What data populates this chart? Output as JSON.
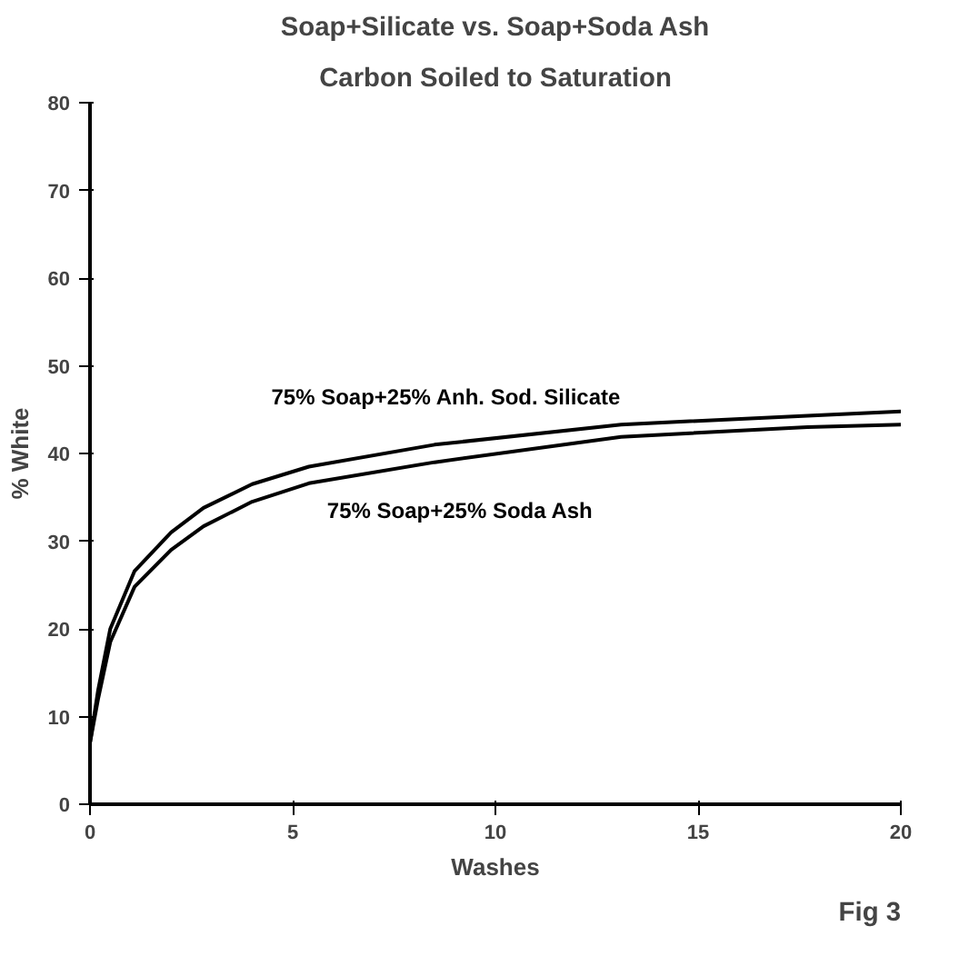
{
  "chart_data": {
    "type": "line",
    "title": "Soap+Silicate vs. Soap+Soda Ash",
    "subtitle": "Carbon Soiled to Saturation",
    "xlabel": "Washes",
    "ylabel": "% White",
    "xlim": [
      0,
      20
    ],
    "xticks": [
      0,
      5,
      10,
      15,
      20
    ],
    "ylim": [
      0,
      80
    ],
    "yticks": [
      0,
      10,
      20,
      30,
      40,
      50,
      60,
      70,
      80
    ],
    "grid": false,
    "legend": false,
    "marker": "none",
    "line_style": "solid",
    "series": [
      {
        "name": "75% Soap+25% Anh. Sod. Silicate",
        "color": "#000000",
        "x": [
          0,
          0.2,
          0.5,
          1.1,
          2,
          2.8,
          4,
          5.4,
          8.5,
          13.1,
          17.7,
          20
        ],
        "values": [
          7,
          13,
          20,
          26.6,
          31,
          33.8,
          36.5,
          38.5,
          41,
          43.3,
          44.3,
          44.8
        ]
      },
      {
        "name": "75% Soap+25% Soda Ash",
        "color": "#000000",
        "x": [
          0,
          0.2,
          0.5,
          1.1,
          2,
          2.8,
          4,
          5.4,
          8.5,
          13.1,
          17.7,
          20
        ],
        "values": [
          7,
          12,
          18.5,
          24.8,
          29,
          31.7,
          34.5,
          36.6,
          39,
          41.9,
          43,
          43.3
        ]
      }
    ],
    "annotations": [
      "Fig 3"
    ]
  }
}
